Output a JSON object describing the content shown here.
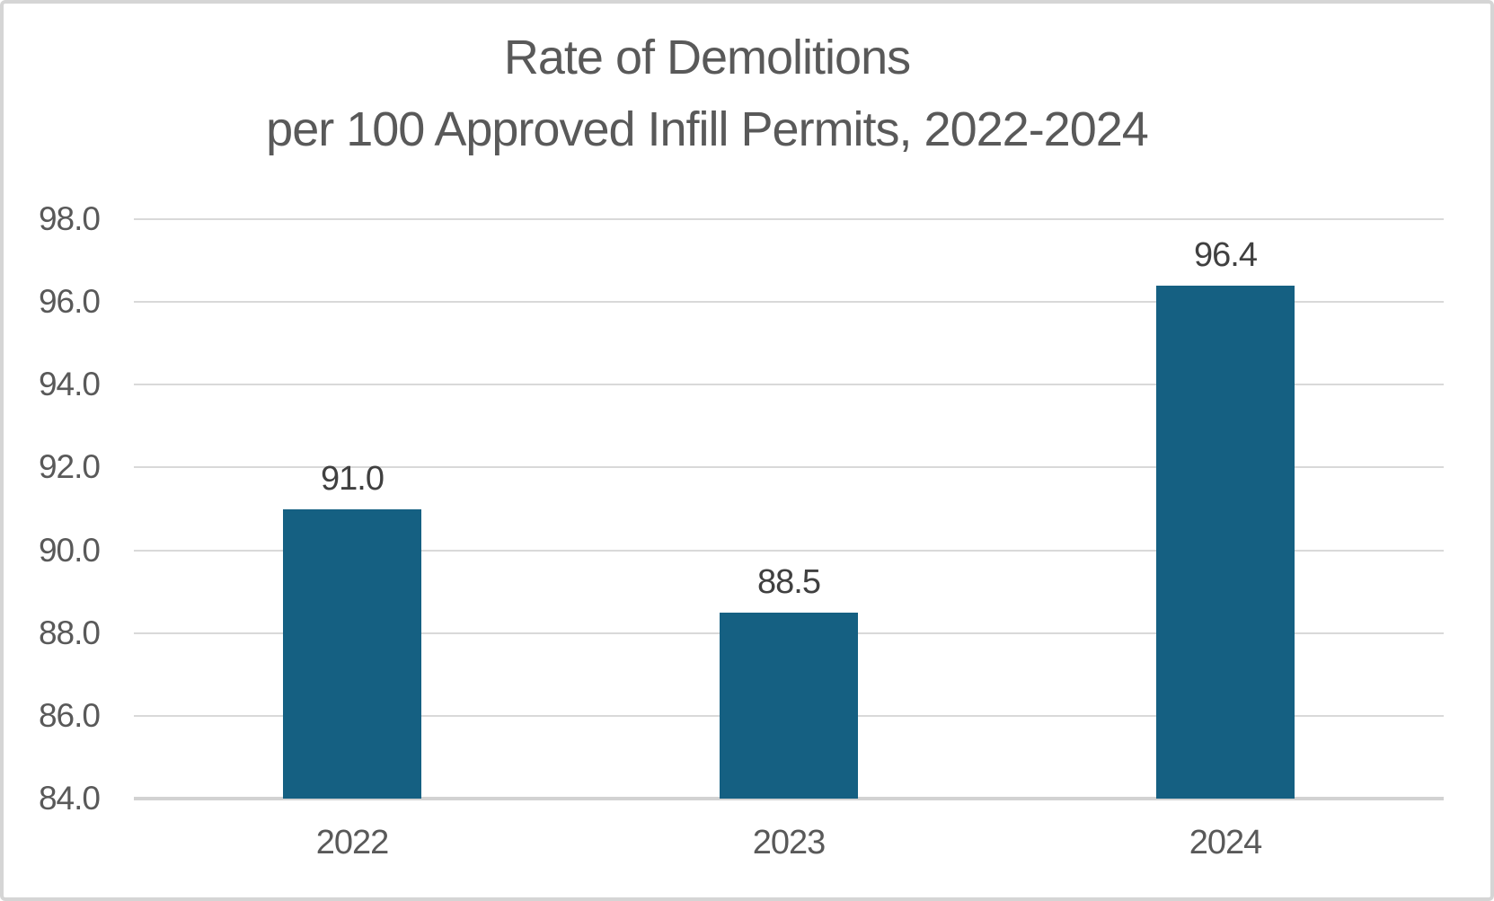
{
  "window": {
    "background_color": "#ffffff",
    "frame_border_color": "#d5d5d5"
  },
  "chart_data": {
    "type": "bar",
    "title_line1": "Rate of Demolitions",
    "title_line2": "per 100 Approved Infill Permits, 2022-2024",
    "categories": [
      "2022",
      "2023",
      "2024"
    ],
    "values": [
      91.0,
      88.5,
      96.4
    ],
    "value_labels": [
      "91.0",
      "88.5",
      "96.4"
    ],
    "xlabel": "",
    "ylabel": "",
    "ylim": [
      84.0,
      98.0
    ],
    "y_tick_interval": 2.0,
    "y_tick_labels": [
      "98.0",
      "96.0",
      "94.0",
      "92.0",
      "90.0",
      "88.0",
      "86.0",
      "84.0"
    ],
    "grid": true,
    "legend_position": "none",
    "bar_color": "#156082",
    "gridline_color": "#d9d9d9",
    "axis_line_color": "#d2d2d2",
    "title_color": "#595959",
    "tick_label_color": "#595959",
    "data_label_color": "#404040"
  }
}
